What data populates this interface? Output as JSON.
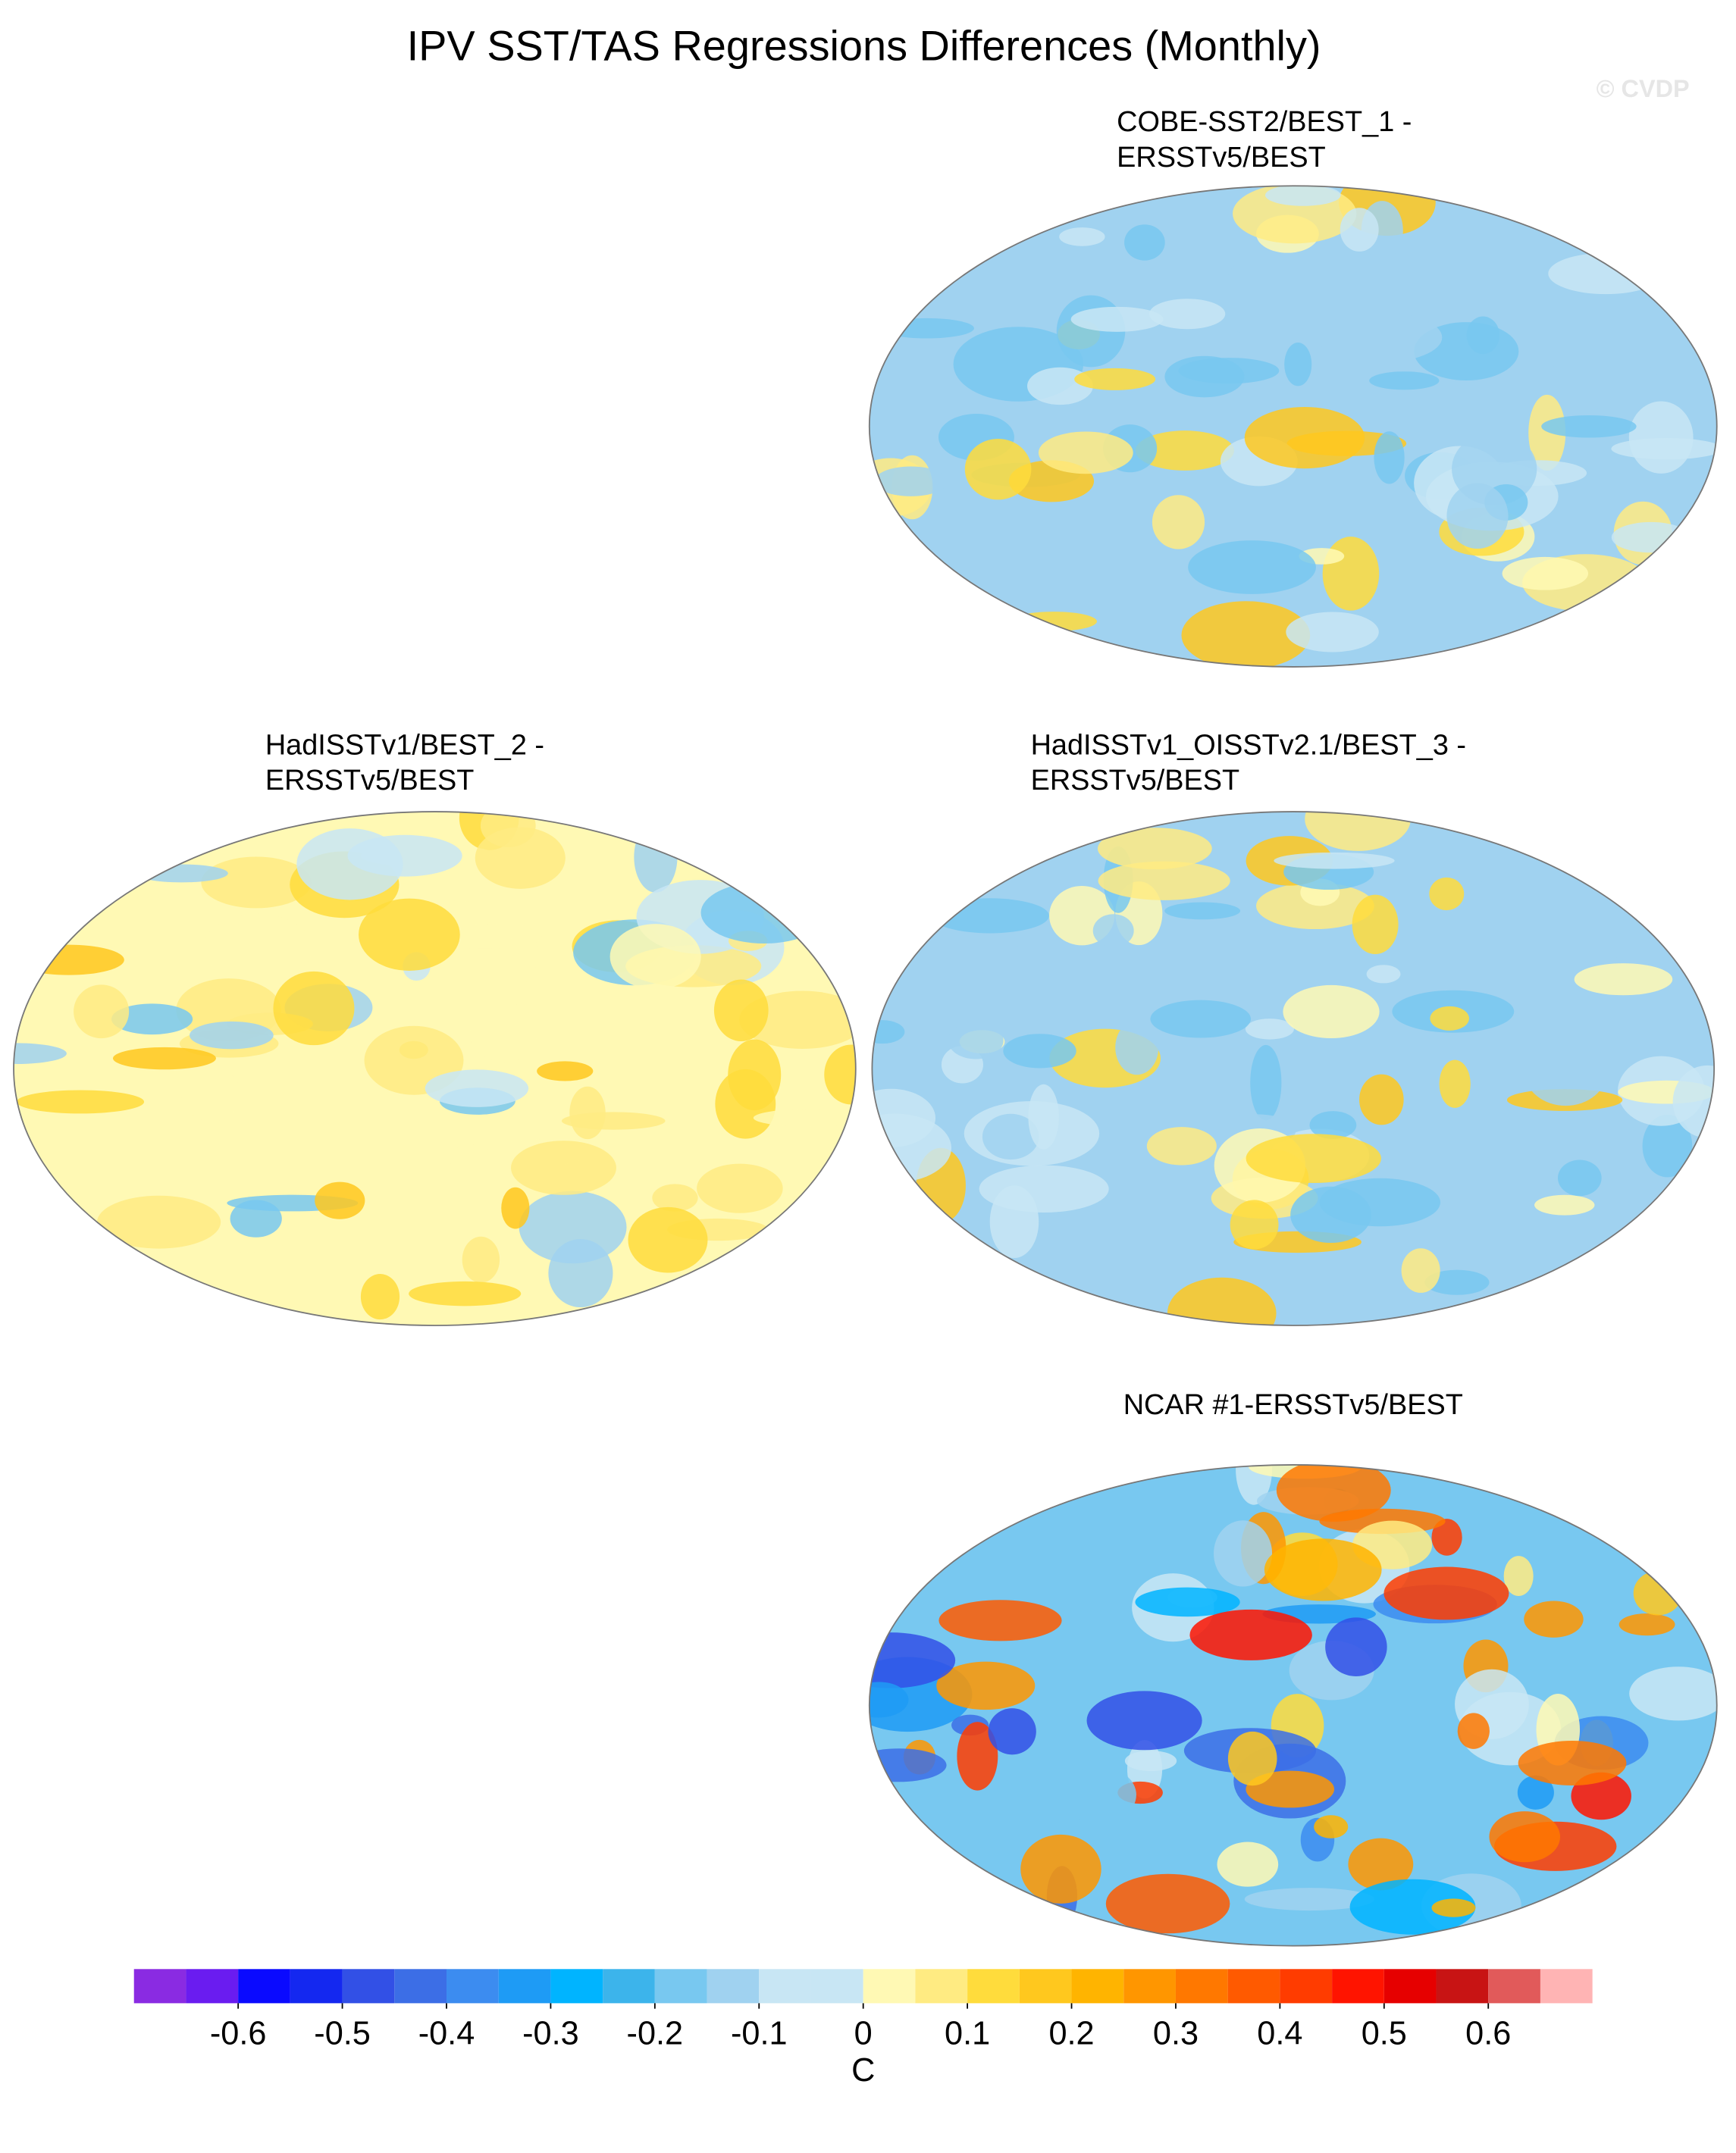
{
  "chart_data": {
    "type": "map",
    "title": "IPV SST/TAS Regressions Differences (Monthly)",
    "watermark": "© CVDP",
    "panels": [
      {
        "title": [
          "COBE-SST2/BEST_1 -",
          "ERSSTv5/BEST"
        ]
      },
      {
        "title": [
          "HadISSTv1/BEST_2 -",
          "ERSSTv5/BEST"
        ]
      },
      {
        "title": [
          "HadISSTv1_OISSTv2.1/BEST_3 -",
          "ERSSTv5/BEST"
        ]
      },
      {
        "title": [
          "NCAR #1-ERSSTv5/BEST"
        ]
      }
    ],
    "colorbar": {
      "range": [
        -0.7,
        0.7
      ],
      "ticks": [
        -0.6,
        -0.5,
        -0.4,
        -0.3,
        -0.2,
        -0.1,
        0,
        0.1,
        0.2,
        0.3,
        0.4,
        0.5,
        0.6
      ],
      "label": "C",
      "colors": [
        "#8a2be2",
        "#6a1cf0",
        "#0a0aff",
        "#1428f0",
        "#3250e6",
        "#3c6ee6",
        "#3c8cf0",
        "#1e9bf5",
        "#00b4ff",
        "#3cb4eb",
        "#78c8f0",
        "#a0d2f0",
        "#c8e6f4",
        "#c8e6f4",
        "#fff9b4",
        "#ffeb82",
        "#ffdc3c",
        "#ffc81e",
        "#ffb400",
        "#ff9600",
        "#ff7800",
        "#ff5a00",
        "#ff3c00",
        "#ff1400",
        "#e60000",
        "#c81414",
        "#e15a5a",
        "#ffb4b4"
      ]
    }
  }
}
